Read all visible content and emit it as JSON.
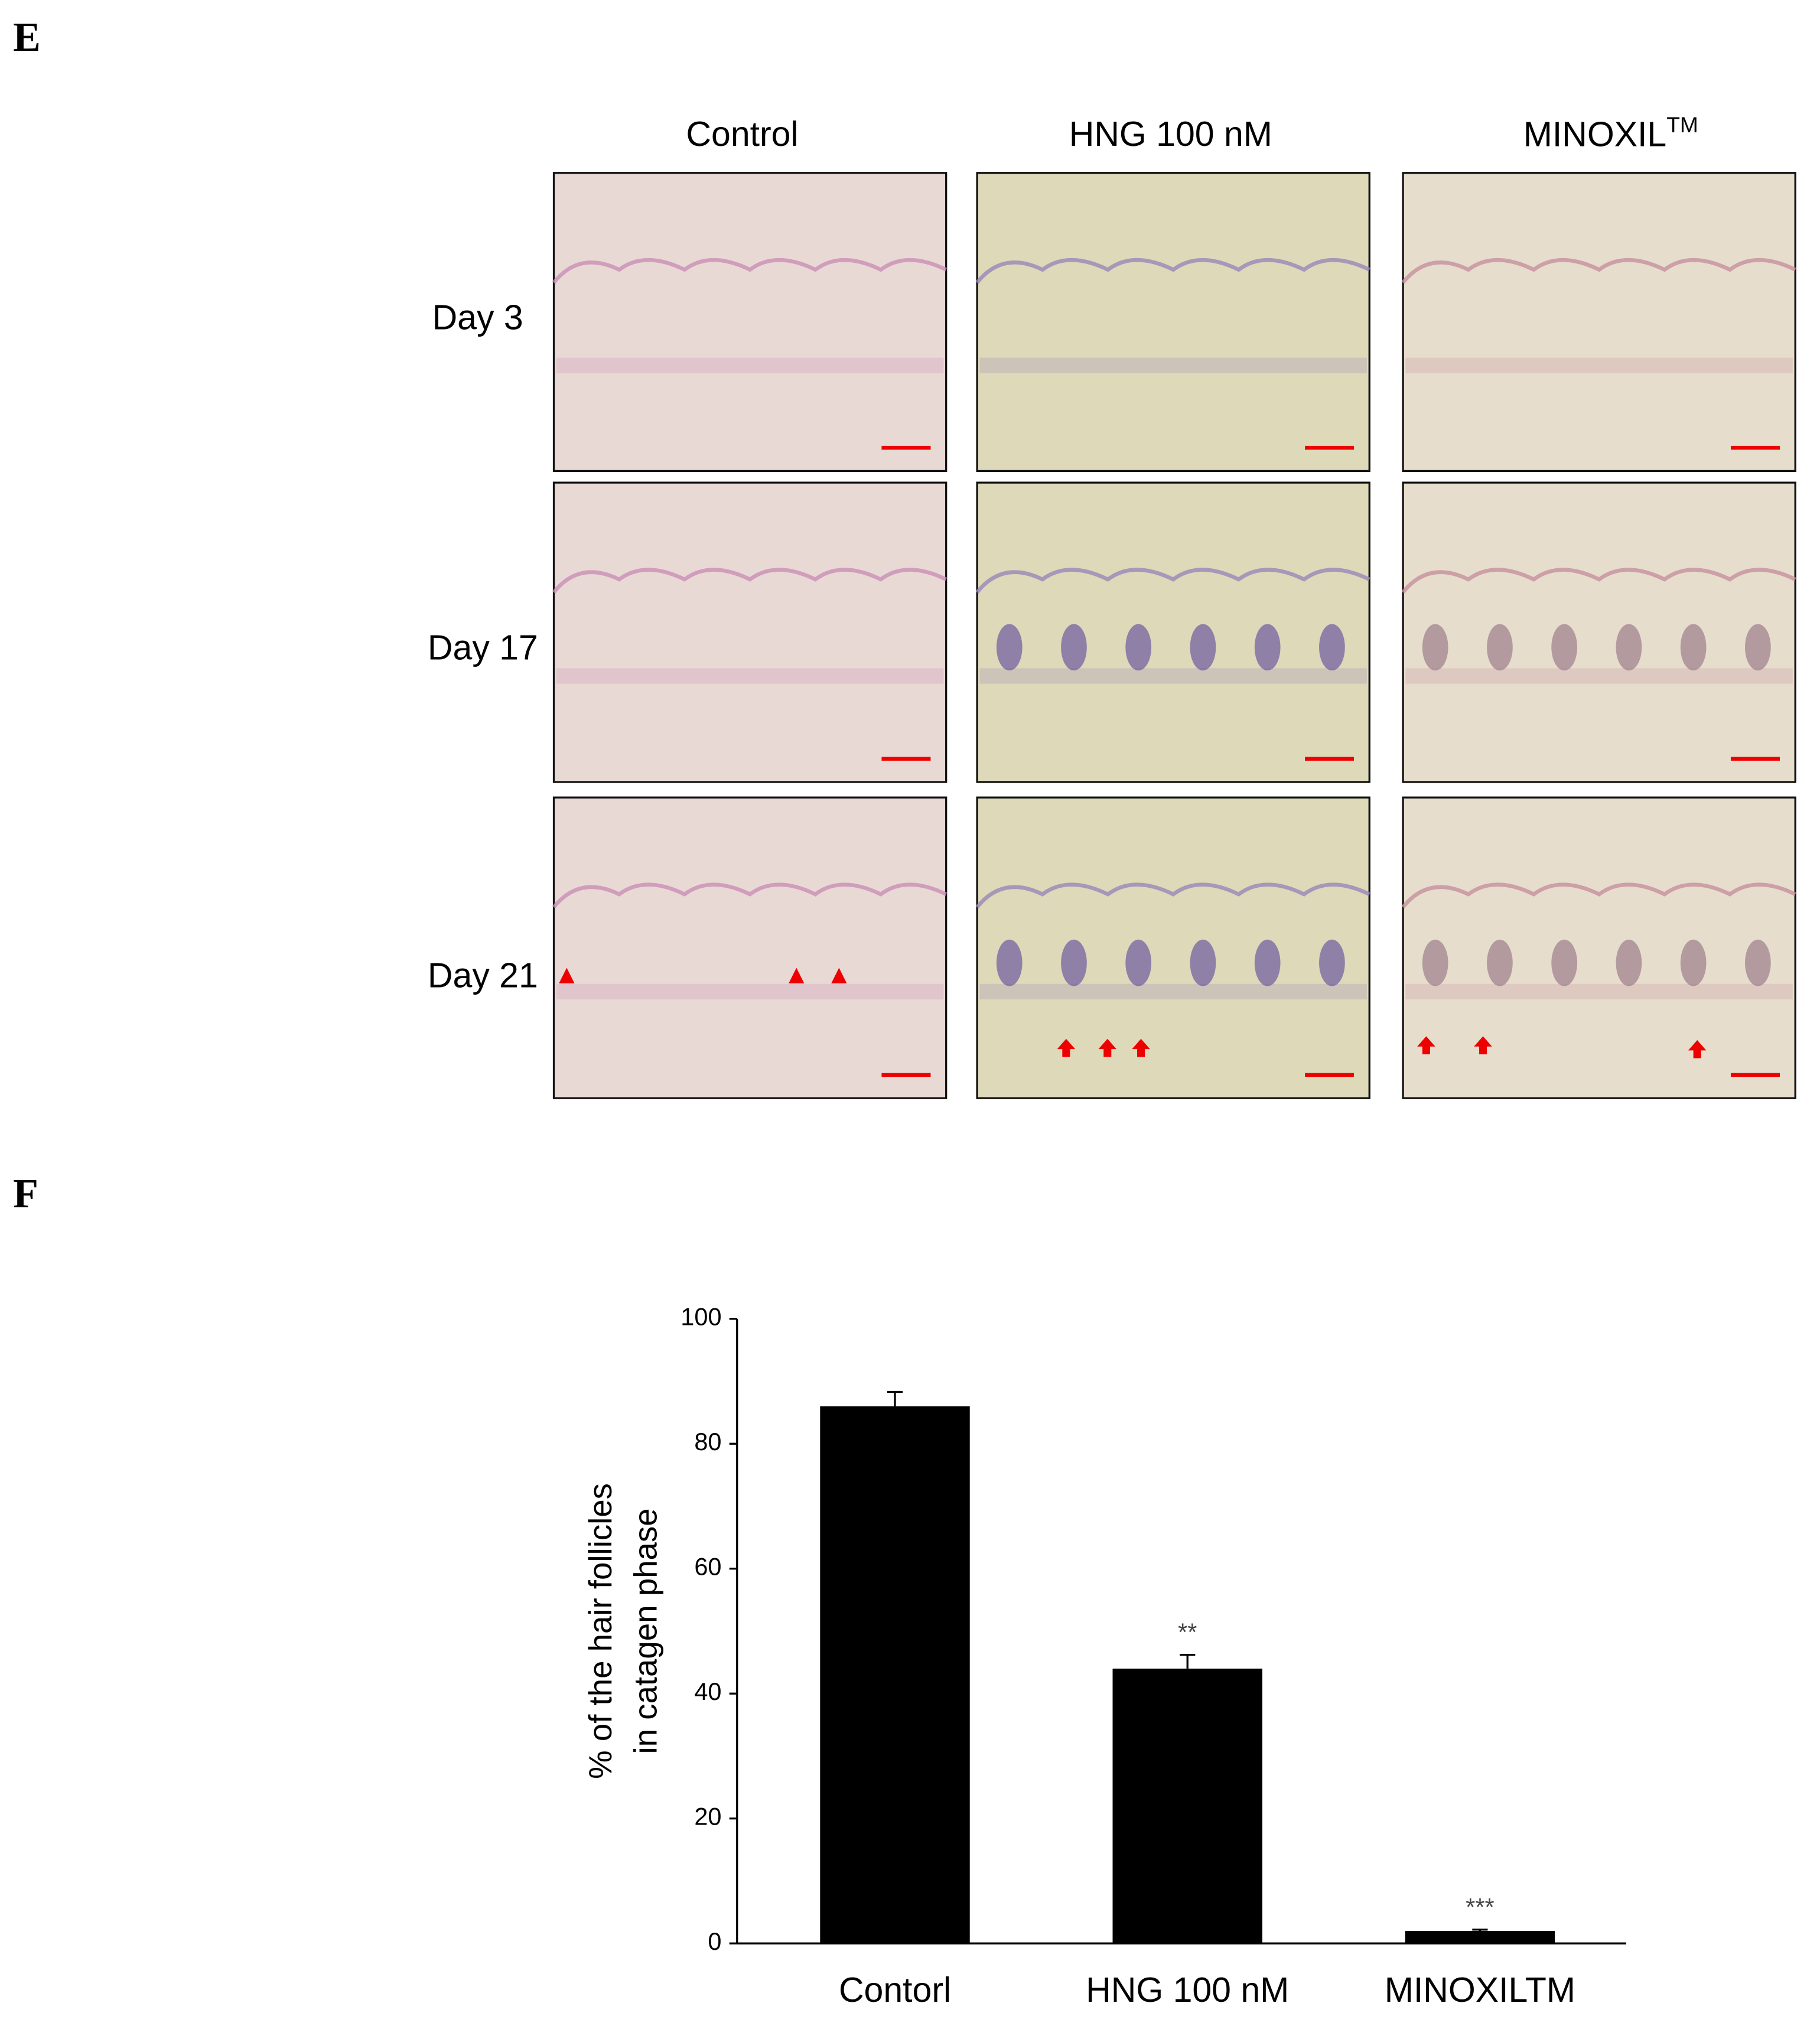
{
  "panel_e": {
    "label": "E",
    "columns": [
      "Control",
      "HNG 100 nM",
      "MINOXIL"
    ],
    "column_superscript": "TM",
    "rows": [
      "Day 3",
      "Day 17",
      "Day 21"
    ]
  },
  "panel_f": {
    "label": "F"
  },
  "chart_data": {
    "type": "bar",
    "y_label": [
      "% of the hair follicles",
      "in catagen phase"
    ],
    "categories": [
      "Contorl",
      "HNG 100 nM",
      "MINOXILTM"
    ],
    "values": [
      86,
      44,
      2
    ],
    "errors": [
      2.3,
      2.2,
      0.2
    ],
    "significance": [
      null,
      "**",
      "***"
    ],
    "color": "#000000",
    "ylim": [
      0,
      100
    ],
    "yticks": [
      0,
      20,
      40,
      60,
      80,
      100
    ],
    "grid": false
  }
}
